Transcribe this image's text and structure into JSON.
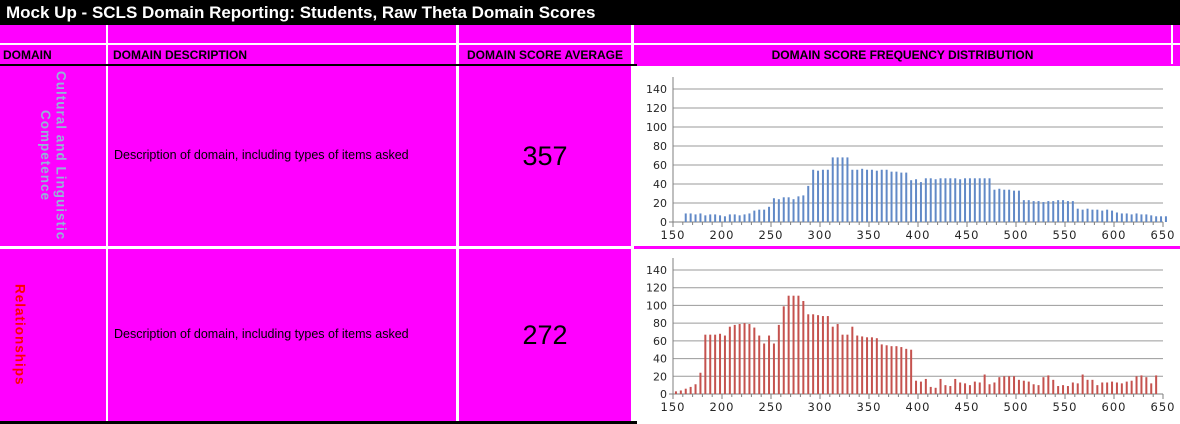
{
  "title": "Mock Up - SCLS Domain Reporting: Students, Raw Theta Domain Scores",
  "colors": {
    "magenta_cell": "#FF00FF",
    "domain1_label": "#95B3D7",
    "domain2_label": "#FF0000",
    "blue_bar": "#6189C7",
    "red_bar": "#C5524E",
    "gridline": "#9A9A9A",
    "axis": "#7F7F7F"
  },
  "table": {
    "headers": [
      "DOMAIN",
      "DOMAIN DESCRIPTION",
      "DOMAIN SCORE AVERAGE",
      "DOMAIN SCORE FREQUENCY DISTRIBUTION"
    ],
    "rows": [
      {
        "domain": "Cultural and Linguistic Competence",
        "domain_lines": [
          "Cultural and Linguistic",
          "Competence"
        ],
        "description": "Description of domain, including types of items asked",
        "average": "357"
      },
      {
        "domain": "Relationships",
        "domain_lines": [
          "Relationships"
        ],
        "description": "Description of domain, including types of items asked",
        "average": "272"
      }
    ]
  },
  "chart_data": [
    {
      "type": "bar",
      "title": "",
      "xlabel": "",
      "ylabel": "",
      "row_domain": "Cultural and Linguistic Competence",
      "x_range": [
        150,
        650
      ],
      "y_range": [
        0,
        140
      ],
      "x_ticks": [
        150,
        200,
        250,
        300,
        350,
        400,
        450,
        500,
        550,
        600,
        650
      ],
      "y_ticks": [
        0,
        20,
        40,
        60,
        80,
        100,
        120,
        140
      ],
      "grid": true,
      "legend": "none",
      "bar_color": "#6189C7",
      "plot": {
        "top": 23,
        "baseline": 156
      },
      "bars": {
        "x_start": 163,
        "x_step": 5,
        "values": [
          9,
          9,
          8,
          9,
          7,
          8,
          8,
          7,
          6,
          8,
          8,
          7,
          8,
          9,
          12,
          13,
          13,
          16,
          25,
          24,
          26,
          26,
          24,
          27,
          28,
          38,
          55,
          54,
          55,
          55,
          68,
          68,
          68,
          68,
          55,
          55,
          56,
          55,
          55,
          54,
          55,
          55,
          53,
          53,
          52,
          52,
          44,
          45,
          42,
          46,
          46,
          45,
          46,
          46,
          46,
          46,
          45,
          46,
          46,
          46,
          46,
          46,
          46,
          34,
          35,
          34,
          34,
          33,
          33,
          23,
          23,
          22,
          22,
          21,
          22,
          22,
          23,
          23,
          22,
          22,
          14,
          13,
          14,
          13,
          13,
          12,
          13,
          12,
          10,
          9,
          9,
          8,
          9,
          8,
          8,
          7,
          6,
          6,
          6
        ]
      }
    },
    {
      "type": "bar",
      "title": "",
      "xlabel": "",
      "ylabel": "",
      "row_domain": "Relationships",
      "x_range": [
        150,
        650
      ],
      "y_range": [
        0,
        140
      ],
      "x_ticks": [
        150,
        200,
        250,
        300,
        350,
        400,
        450,
        500,
        550,
        600,
        650
      ],
      "y_ticks": [
        0,
        20,
        40,
        60,
        80,
        100,
        120,
        140
      ],
      "grid": true,
      "legend": "none",
      "bar_color": "#C5524E",
      "plot": {
        "top": 21,
        "baseline": 145
      },
      "bars": {
        "x_start": 153,
        "x_step": 5,
        "values": [
          3,
          4,
          6,
          8,
          11,
          24,
          67,
          67,
          67,
          68,
          66,
          76,
          78,
          79,
          80,
          79,
          75,
          66,
          57,
          66,
          57,
          78,
          99,
          111,
          111,
          111,
          105,
          90,
          90,
          89,
          88,
          88,
          76,
          79,
          67,
          67,
          76,
          66,
          65,
          64,
          64,
          63,
          56,
          55,
          54,
          54,
          53,
          51,
          50,
          15,
          14,
          17,
          8,
          7,
          17,
          10,
          9,
          17,
          13,
          12,
          10,
          14,
          13,
          22,
          11,
          13,
          19,
          20,
          20,
          20,
          16,
          15,
          14,
          11,
          10,
          19,
          21,
          16,
          9,
          10,
          9,
          13,
          12,
          22,
          16,
          16,
          10,
          13,
          13,
          14,
          13,
          12,
          14,
          15,
          20,
          21,
          19,
          12,
          21
        ]
      }
    }
  ]
}
